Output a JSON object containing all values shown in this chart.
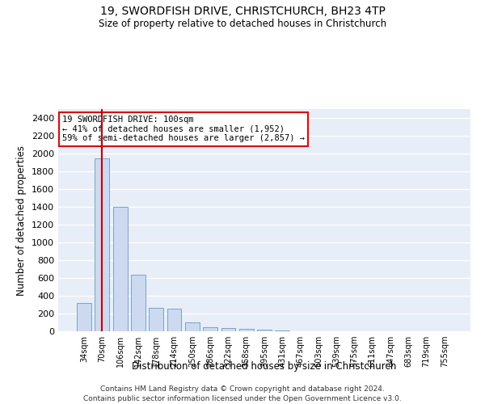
{
  "title": "19, SWORDFISH DRIVE, CHRISTCHURCH, BH23 4TP",
  "subtitle": "Size of property relative to detached houses in Christchurch",
  "xlabel": "Distribution of detached houses by size in Christchurch",
  "ylabel": "Number of detached properties",
  "footer_line1": "Contains HM Land Registry data © Crown copyright and database right 2024.",
  "footer_line2": "Contains public sector information licensed under the Open Government Licence v3.0.",
  "annotation_line1": "19 SWORDFISH DRIVE: 100sqm",
  "annotation_line2": "← 41% of detached houses are smaller (1,952)",
  "annotation_line3": "59% of semi-detached houses are larger (2,857) →",
  "bar_labels": [
    "34sqm",
    "70sqm",
    "106sqm",
    "142sqm",
    "178sqm",
    "214sqm",
    "250sqm",
    "286sqm",
    "322sqm",
    "358sqm",
    "395sqm",
    "431sqm",
    "467sqm",
    "503sqm",
    "539sqm",
    "575sqm",
    "611sqm",
    "647sqm",
    "683sqm",
    "719sqm",
    "755sqm"
  ],
  "bar_values": [
    320,
    1950,
    1400,
    640,
    260,
    255,
    100,
    50,
    40,
    25,
    20,
    10,
    0,
    0,
    0,
    0,
    0,
    0,
    0,
    0,
    0
  ],
  "highlight_bar_index": 1,
  "bar_color_normal": "#ccd9ee",
  "bar_edge_color": "#6699cc",
  "red_line_color": "#cc0000",
  "bg_color": "#e8eef8",
  "grid_color": "#ffffff",
  "ylim": [
    0,
    2500
  ],
  "yticks": [
    0,
    200,
    400,
    600,
    800,
    1000,
    1200,
    1400,
    1600,
    1800,
    2000,
    2200,
    2400
  ],
  "fig_width": 6.0,
  "fig_height": 5.0,
  "dpi": 100
}
